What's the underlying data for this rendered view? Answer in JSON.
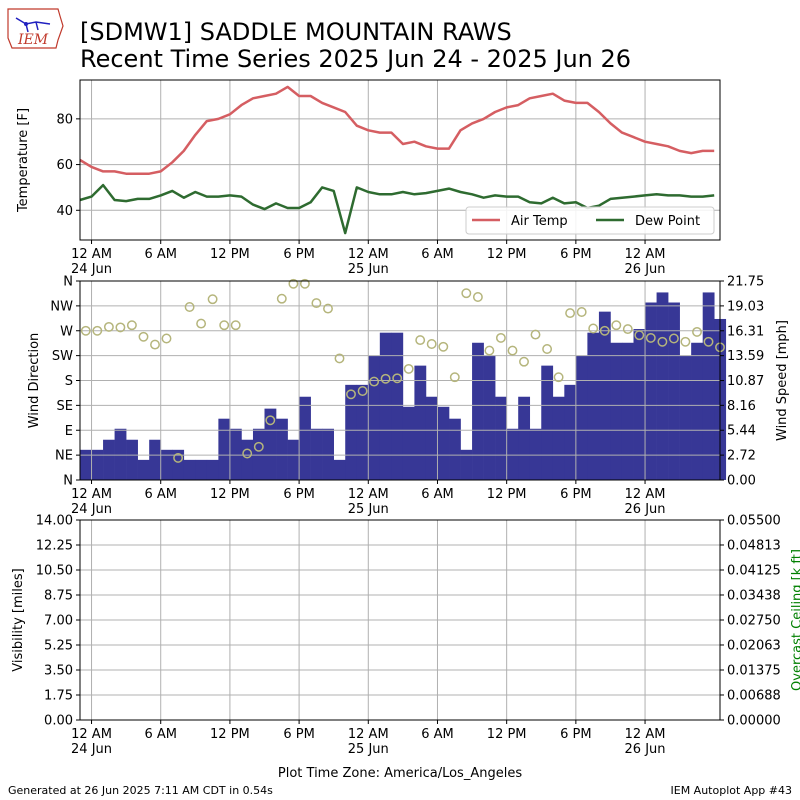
{
  "header": {
    "title_line1": "[SDMW1] SADDLE MOUNTAIN RAWS",
    "title_line2": "Recent Time Series 2025 Jun 24 - 2025 Jun 26",
    "logo_text": "IEM"
  },
  "footer": {
    "timezone_label": "Plot Time Zone: America/Los_Angeles",
    "generated": "Generated at 26 Jun 2025 7:11 AM CDT in 0.54s",
    "app": "IEM Autoplot App #43"
  },
  "colors": {
    "air_temp": "#d55e62",
    "dew_point": "#2e6b30",
    "wind_speed_bar": "#373796",
    "wind_dir_marker": "#b5b57c",
    "ceiling_axis_label": "#008000",
    "grid": "#b0b0b0"
  },
  "time_axis": {
    "tick_labels": [
      "12 AM",
      "6 AM",
      "12 PM",
      "6 PM",
      "12 AM",
      "6 AM",
      "12 PM",
      "6 PM",
      "12 AM"
    ],
    "date_labels": {
      "0": "24 Jun",
      "24": "25 Jun",
      "48": "26 Jun"
    }
  },
  "chart_data": [
    {
      "type": "line",
      "id": "temperature",
      "xlabel": "",
      "ylabel": "Temperature [F]",
      "x_unit": "hours since 2025-06-24 12 AM",
      "xlim": [
        -1,
        54.5
      ],
      "ylim": [
        27,
        97
      ],
      "yticks": [
        40,
        60,
        80
      ],
      "grid": true,
      "legend": {
        "placement": "lower-right",
        "entries": [
          "Air Temp",
          "Dew Point"
        ]
      },
      "series": [
        {
          "name": "Air Temp",
          "color": "#d55e62",
          "x": [
            -1,
            0,
            1,
            2,
            3,
            4,
            5,
            6,
            7,
            8,
            9,
            10,
            11,
            12,
            13,
            14,
            15,
            16,
            17,
            18,
            19,
            20,
            21,
            22,
            23,
            24,
            25,
            26,
            27,
            28,
            29,
            30,
            31,
            32,
            33,
            34,
            35,
            36,
            37,
            38,
            39,
            40,
            41,
            42,
            43,
            44,
            45,
            46,
            47,
            48,
            49,
            50,
            51,
            52,
            53,
            54
          ],
          "y": [
            62,
            59,
            57,
            57,
            56,
            56,
            56,
            57,
            61,
            66,
            73,
            79,
            80,
            82,
            86,
            89,
            90,
            91,
            94,
            90,
            90,
            87,
            85,
            83,
            77,
            75,
            74,
            74,
            69,
            70,
            68,
            67,
            67,
            75,
            78,
            80,
            83,
            85,
            86,
            89,
            90,
            91,
            88,
            87,
            87,
            83,
            78,
            74,
            72,
            70,
            69,
            68,
            66,
            65,
            66,
            66
          ]
        },
        {
          "name": "Dew Point",
          "color": "#2e6b30",
          "x": [
            -1,
            0,
            1,
            2,
            3,
            4,
            5,
            6,
            7,
            8,
            9,
            10,
            11,
            12,
            13,
            14,
            15,
            16,
            17,
            18,
            19,
            20,
            21,
            22,
            23,
            24,
            25,
            26,
            27,
            28,
            29,
            30,
            31,
            32,
            33,
            34,
            35,
            36,
            37,
            38,
            39,
            40,
            41,
            42,
            43,
            44,
            45,
            46,
            47,
            48,
            49,
            50,
            51,
            52,
            53,
            54
          ],
          "y": [
            44.5,
            46,
            51,
            44.5,
            44,
            45,
            45,
            46.5,
            48.5,
            45.5,
            48,
            46,
            46,
            46.5,
            46,
            42.5,
            40.5,
            43,
            41,
            41,
            43.5,
            50,
            48.5,
            30,
            50,
            48,
            47,
            47,
            48,
            47,
            47.5,
            48.5,
            49.5,
            48,
            47,
            45.5,
            46.5,
            46,
            46,
            43.5,
            43,
            45.5,
            43,
            43.5,
            41,
            42,
            45,
            45.5,
            46,
            46.5,
            47,
            46.5,
            46.5,
            46,
            46,
            46.5
          ]
        }
      ]
    },
    {
      "type": "bar",
      "id": "wind",
      "xlabel": "",
      "ylabel": "Wind Direction",
      "ylabel_right": "Wind Speed [mph]",
      "xlim": [
        -1,
        54.5
      ],
      "ylim_speed": [
        0,
        21.75
      ],
      "yticks_right": [
        "0.00",
        "2.72",
        "5.44",
        "8.16",
        "10.87",
        "13.59",
        "16.31",
        "19.03",
        "21.75"
      ],
      "direction_ticks": [
        "N",
        "NE",
        "E",
        "SE",
        "S",
        "SW",
        "W",
        "NW",
        "N"
      ],
      "direction_range": [
        0,
        360
      ],
      "grid": true,
      "series": [
        {
          "name": "Wind Speed",
          "type": "bar",
          "color": "#373796",
          "x": [
            -1,
            0,
            1,
            2,
            3,
            4,
            5,
            6,
            7,
            8,
            9,
            10,
            11,
            12,
            13,
            14,
            15,
            16,
            17,
            18,
            19,
            20,
            21,
            22,
            23,
            24,
            25,
            26,
            27,
            28,
            29,
            30,
            31,
            32,
            33,
            34,
            35,
            36,
            37,
            38,
            39,
            40,
            41,
            42,
            43,
            44,
            45,
            46,
            47,
            48,
            49,
            50,
            51,
            52,
            53,
            54
          ],
          "values": [
            3.3,
            3.3,
            4.4,
            5.6,
            4.4,
            2.2,
            4.4,
            3.3,
            3.3,
            2.2,
            2.2,
            2.2,
            6.7,
            5.6,
            4.4,
            5.6,
            7.8,
            6.7,
            4.4,
            9.1,
            5.6,
            5.6,
            2.2,
            10.4,
            10.4,
            13.6,
            16.1,
            16.1,
            8.0,
            12.5,
            9.1,
            8.0,
            6.7,
            3.3,
            15.0,
            13.6,
            9.1,
            5.6,
            9.1,
            5.6,
            12.5,
            9.1,
            10.4,
            13.6,
            16.1,
            18.4,
            15.0,
            15.0,
            16.5,
            19.4,
            20.5,
            19.4,
            13.6,
            15.0,
            20.5,
            17.6
          ]
        },
        {
          "name": "Wind Direction",
          "type": "scatter",
          "color": "#b5b57c",
          "x": [
            -1,
            0,
            1,
            2,
            3,
            4,
            5,
            6,
            7,
            8,
            9,
            10,
            11,
            12,
            13,
            14,
            15,
            16,
            17,
            18,
            19,
            20,
            21,
            22,
            23,
            24,
            25,
            26,
            27,
            28,
            29,
            30,
            31,
            32,
            33,
            34,
            35,
            36,
            37,
            38,
            39,
            40,
            41,
            42,
            43,
            44,
            45,
            46,
            47,
            48,
            49,
            50,
            51,
            52,
            53,
            54
          ],
          "values": [
            270,
            270,
            277,
            276,
            280,
            259,
            245,
            256,
            40,
            313,
            283,
            327,
            280,
            280,
            48,
            60,
            108,
            328,
            355,
            355,
            320,
            310,
            220,
            155,
            161,
            178,
            183,
            184,
            201,
            253,
            246,
            241,
            186,
            338,
            331,
            234,
            257,
            234,
            214,
            263,
            237,
            186,
            302,
            304,
            274,
            270,
            280,
            273,
            262,
            257,
            250,
            256,
            250,
            268,
            250,
            240
          ]
        }
      ]
    },
    {
      "type": "line",
      "id": "visibility",
      "xlabel": "",
      "ylabel": "Visibility [miles]",
      "ylabel_right": "Overcast Ceiling [k ft]",
      "xlim": [
        -1,
        54.5
      ],
      "ylim": [
        0,
        14
      ],
      "ylim_right": [
        0,
        0.055
      ],
      "yticks_left": [
        "0.00",
        "1.75",
        "3.50",
        "5.25",
        "7.00",
        "8.75",
        "10.50",
        "12.25",
        "14.00"
      ],
      "yticks_right": [
        "0.00000",
        "0.00688",
        "0.01375",
        "0.02063",
        "0.02750",
        "0.03438",
        "0.04125",
        "0.04813",
        "0.05500"
      ],
      "grid": true,
      "series": []
    }
  ]
}
